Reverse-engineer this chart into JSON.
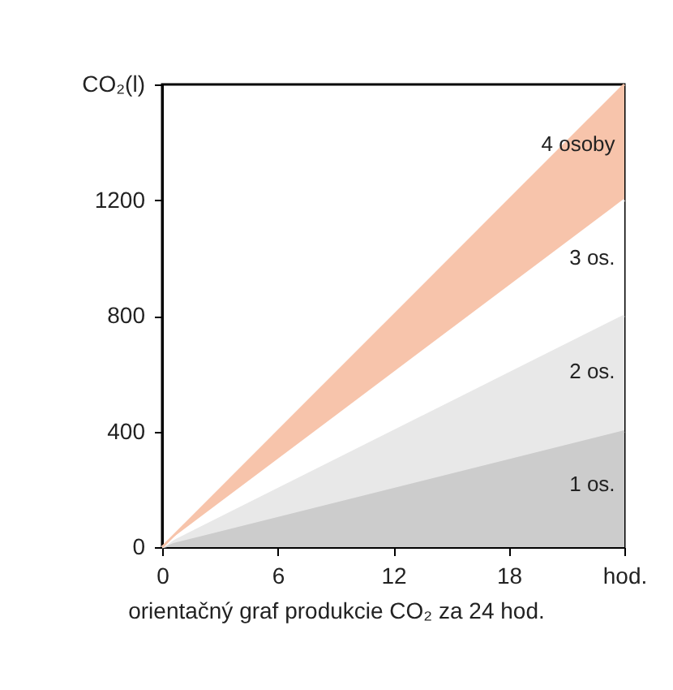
{
  "chart_data": {
    "type": "area",
    "stacked": true,
    "x": [
      0,
      24
    ],
    "series": [
      {
        "name": "1 os.",
        "color": "#cccccc",
        "values": [
          0,
          400
        ]
      },
      {
        "name": "2 os.",
        "color": "#e8e8e8",
        "values": [
          0,
          400
        ]
      },
      {
        "name": "3 os.",
        "color": "#ffffff",
        "values": [
          0,
          400
        ]
      },
      {
        "name": "4 osoby",
        "color": "#f7c4ab",
        "values": [
          0,
          400
        ]
      }
    ],
    "xlim": [
      0,
      24
    ],
    "xticks": [
      0,
      6,
      12,
      18,
      {
        "value": 24,
        "label": "hod."
      }
    ],
    "ylim": [
      0,
      1600
    ],
    "yticks": [
      0,
      400,
      800,
      1200,
      {
        "value": 1600,
        "label": "CO₂(l)"
      }
    ],
    "grid": false,
    "legend": false,
    "annotations": [
      "orientačný graf produkcie CO₂ za 24 hod."
    ]
  }
}
